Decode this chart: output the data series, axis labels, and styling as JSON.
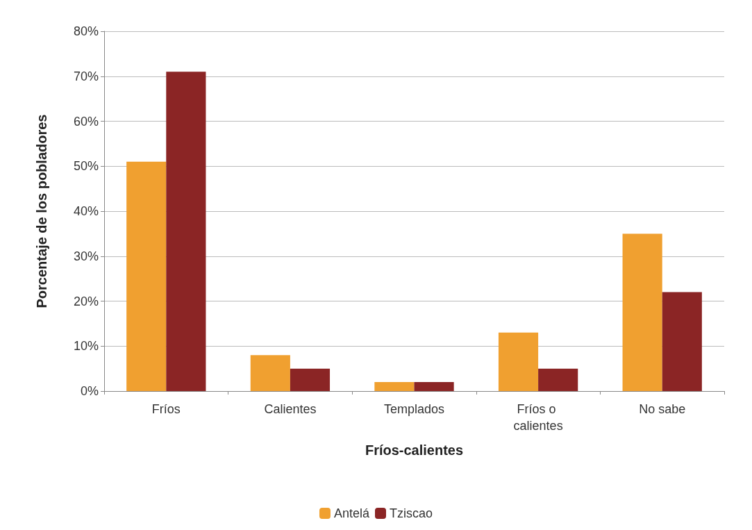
{
  "chart_data": {
    "type": "bar",
    "xlabel": "Fríos-calientes",
    "ylabel": "Porcentaje de los pobladores",
    "categories": [
      "Fríos",
      "Calientes",
      "Templados",
      "Fríos o calientes",
      "No sabe"
    ],
    "series": [
      {
        "name": "Antelá",
        "color": "#f0a030",
        "values": [
          51,
          8,
          2,
          13,
          35
        ]
      },
      {
        "name": "Tziscao",
        "color": "#8b2525",
        "values": [
          71,
          5,
          2,
          5,
          22
        ]
      }
    ],
    "ylim": [
      0,
      80
    ],
    "yticks": [
      {
        "value": 0,
        "label": "0%"
      },
      {
        "value": 10,
        "label": "10%"
      },
      {
        "value": 20,
        "label": "20%"
      },
      {
        "value": 30,
        "label": "30%"
      },
      {
        "value": 40,
        "label": "40%"
      },
      {
        "value": 50,
        "label": "50%"
      },
      {
        "value": 60,
        "label": "60%"
      },
      {
        "value": 70,
        "label": "70%"
      },
      {
        "value": 80,
        "label": "80%"
      }
    ],
    "grid": "y",
    "legend": "bottom"
  }
}
